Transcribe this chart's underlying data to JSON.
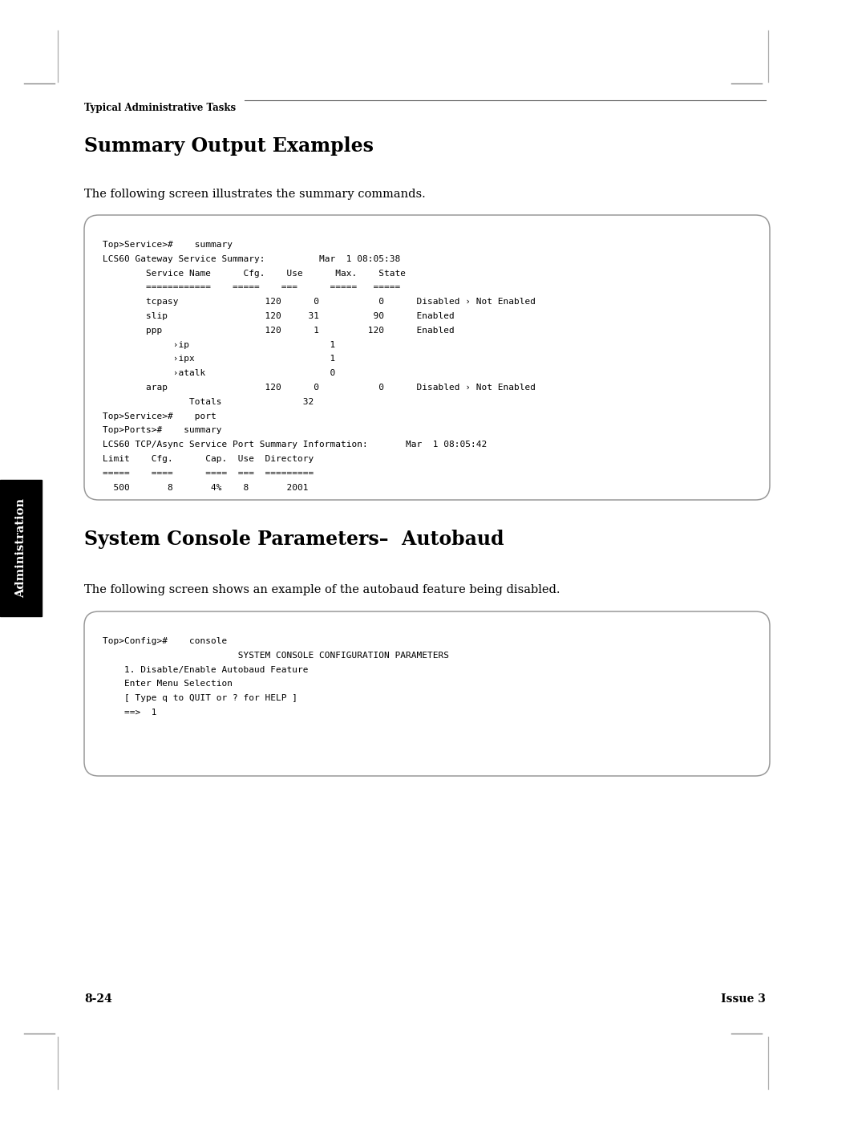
{
  "bg_color": "#ffffff",
  "page_width": 10.8,
  "page_height": 13.97,
  "header_text": "Typical Administrative Tasks",
  "section1_title": "Summary Output Examples",
  "section1_intro": "The following screen illustrates the summary commands.",
  "box1_lines": [
    "Top>Service>#    summary",
    "LCS60 Gateway Service Summary:          Mar  1 08:05:38",
    "        Service Name      Cfg.    Use      Max.    State",
    "        ============    =====    ===      =====   =====",
    "        tcpasy                120      0           0      Disabled › Not Enabled",
    "        slip                  120     31          90      Enabled",
    "        ppp                   120      1         120      Enabled",
    "             ›ip                          1",
    "             ›ipx                         1",
    "             ›atalk                       0",
    "        arap                  120      0           0      Disabled › Not Enabled",
    "                Totals               32",
    "Top>Service>#    port",
    "Top>Ports>#    summary",
    "LCS60 TCP/Async Service Port Summary Information:       Mar  1 08:05:42",
    "Limit    Cfg.      Cap.  Use  Directory",
    "=====    ====      ====  ===  =========",
    "  500       8       4%    8       2001"
  ],
  "section2_title": "System Console Parameters–  Autobaud",
  "section2_intro": "The following screen shows an example of the autobaud feature being disabled.",
  "box2_lines": [
    "Top>Config>#    console",
    "                         SYSTEM CONSOLE CONFIGURATION PARAMETERS",
    "    1. Disable/Enable Autobaud Feature",
    "    Enter Menu Selection",
    "    [ Type q to QUIT or ? for HELP ]",
    "    ==>  1"
  ],
  "footer_left": "8-24",
  "footer_right": "Issue 3",
  "sidebar_text": "Administration",
  "sidebar_bg": "#000000",
  "sidebar_text_color": "#ffffff",
  "box_border_color": "#999999",
  "box_bg_color": "#ffffff",
  "monospace_font": "monospace",
  "body_font": "DejaVu Serif",
  "title_fontsize": 17,
  "intro_fontsize": 10.5,
  "mono_fontsize": 8.0,
  "header_fontsize": 8.5,
  "footer_fontsize": 10
}
